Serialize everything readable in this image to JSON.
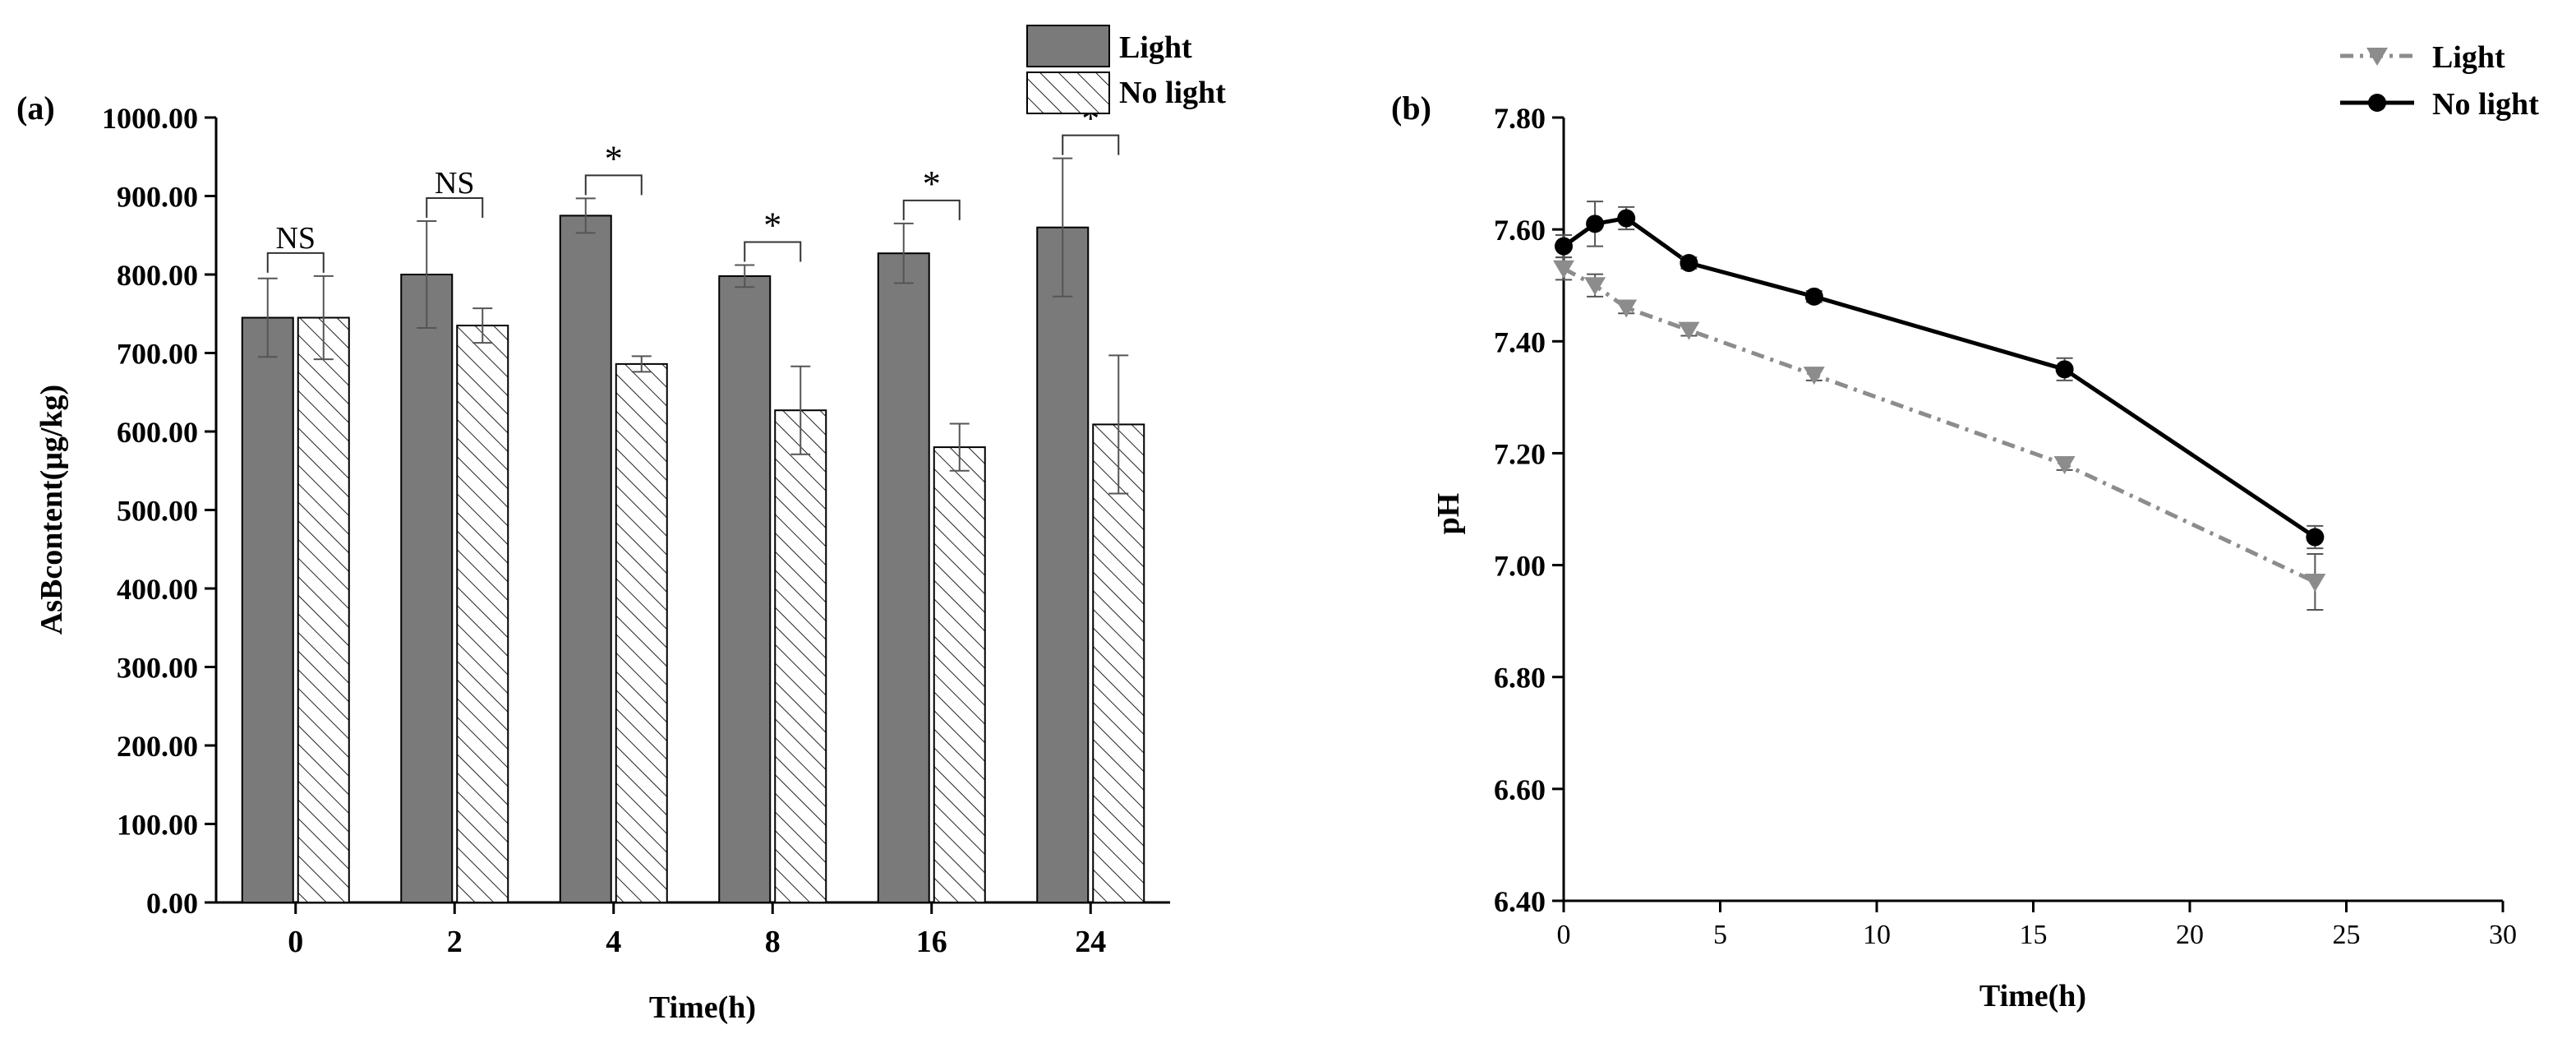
{
  "chart_data": [
    {
      "type": "bar",
      "panel_label": "(a)",
      "xlabel": "Time(h)",
      "ylabel": "AsBcontent(μg/kg)",
      "ylim": [
        0,
        1000
      ],
      "yticks": [
        "0.00",
        "100.00",
        "200.00",
        "300.00",
        "400.00",
        "500.00",
        "600.00",
        "700.00",
        "800.00",
        "900.00",
        "1000.00"
      ],
      "categories": [
        "0",
        "2",
        "4",
        "8",
        "16",
        "24"
      ],
      "series": [
        {
          "name": "Light",
          "values": [
            745,
            800,
            875,
            798,
            827,
            860
          ],
          "errors": [
            50,
            68,
            22,
            14,
            38,
            88
          ],
          "color": "#7a7a7a"
        },
        {
          "name": "No light",
          "values": [
            745,
            735,
            686,
            627,
            580,
            609
          ],
          "errors": [
            53,
            22,
            10,
            56,
            30,
            88
          ],
          "color": "#ffffff"
        }
      ],
      "annotations": [
        "NS",
        "NS",
        "*",
        "*",
        "*",
        "*"
      ],
      "legend": {
        "position": "top-right",
        "entries": [
          "Light",
          "No light"
        ]
      }
    },
    {
      "type": "line",
      "panel_label": "(b)",
      "xlabel": "Time(h)",
      "ylabel": "pH",
      "xlim": [
        0,
        30
      ],
      "ylim": [
        6.4,
        7.8
      ],
      "xticks": [
        "0",
        "5",
        "10",
        "15",
        "20",
        "25",
        "30"
      ],
      "yticks": [
        "6.40",
        "6.60",
        "6.80",
        "7.00",
        "7.20",
        "7.40",
        "7.60",
        "7.80"
      ],
      "series": [
        {
          "name": "Light",
          "x": [
            0,
            1,
            2,
            4,
            8,
            16,
            24
          ],
          "y": [
            7.53,
            7.5,
            7.46,
            7.42,
            7.34,
            7.18,
            6.97
          ],
          "errors": [
            0.02,
            0.02,
            0.01,
            0.01,
            0.01,
            0.01,
            0.05
          ],
          "color": "#8c8c8c",
          "marker": "triangle-down",
          "style": "dash-dot"
        },
        {
          "name": "No light",
          "x": [
            0,
            1,
            2,
            4,
            8,
            16,
            24
          ],
          "y": [
            7.57,
            7.61,
            7.62,
            7.54,
            7.48,
            7.35,
            7.05
          ],
          "errors": [
            0.02,
            0.04,
            0.02,
            0.01,
            0.01,
            0.02,
            0.02
          ],
          "color": "#000000",
          "marker": "circle",
          "style": "solid"
        }
      ],
      "legend": {
        "position": "top-right",
        "entries": [
          "Light",
          "No light"
        ]
      }
    }
  ]
}
